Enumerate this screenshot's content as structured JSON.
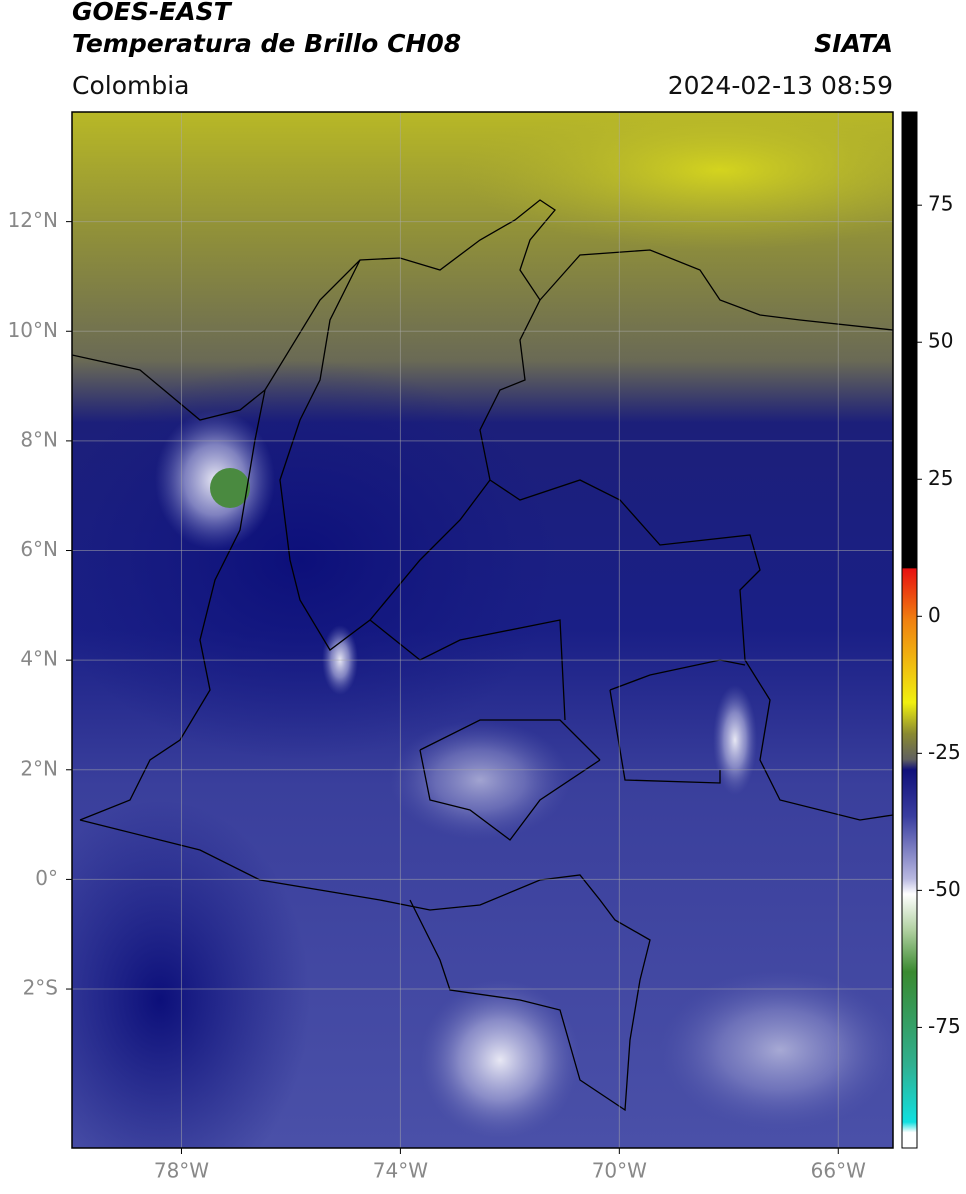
{
  "header": {
    "title": "GOES-EAST",
    "subtitle": "Temperatura de Brillo CH08",
    "source": "SIATA",
    "region": "Colombia",
    "datetime": "2024-02-13 08:59"
  },
  "map": {
    "xlim": [
      -80,
      -65
    ],
    "ylim": [
      -4.9,
      14
    ],
    "xticks": [
      {
        "value": -78,
        "label": "78°W"
      },
      {
        "value": -74,
        "label": "74°W"
      },
      {
        "value": -70,
        "label": "70°W"
      },
      {
        "value": -66,
        "label": "66°W"
      }
    ],
    "yticks": [
      {
        "value": 12,
        "label": "12°N"
      },
      {
        "value": 10,
        "label": "10°N"
      },
      {
        "value": 8,
        "label": "8°N"
      },
      {
        "value": 6,
        "label": "6°N"
      },
      {
        "value": 4,
        "label": "4°N"
      },
      {
        "value": 2,
        "label": "2°N"
      },
      {
        "value": 0,
        "label": "0°"
      },
      {
        "value": -2,
        "label": "2°S"
      }
    ],
    "grid": true
  },
  "colorbar": {
    "lim": [
      -97,
      92
    ],
    "ticks": [
      75,
      50,
      25,
      0,
      -25,
      -50,
      -75
    ]
  }
}
